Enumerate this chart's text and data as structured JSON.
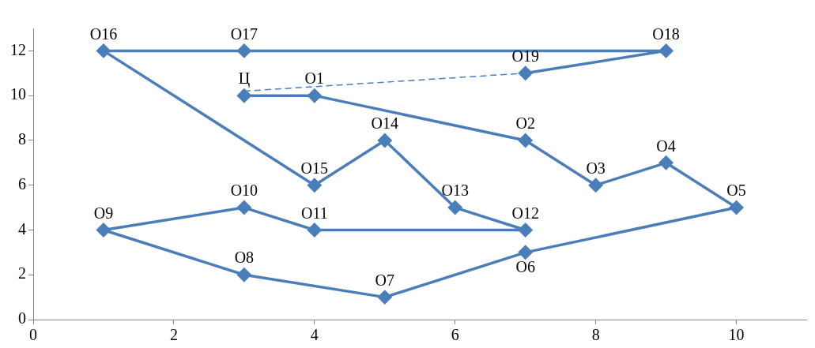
{
  "chart_data": {
    "type": "line",
    "xlim": [
      0,
      11
    ],
    "ylim": [
      0,
      13
    ],
    "xticks": [
      0,
      2,
      4,
      6,
      8,
      10
    ],
    "yticks": [
      0,
      2,
      4,
      6,
      8,
      10,
      12
    ],
    "grid": false,
    "legend": false,
    "marker": "diamond",
    "line_style": "solid",
    "series": [
      {
        "color": "#4a7ebb",
        "x": [
          3,
          4,
          7,
          8,
          9,
          10,
          7,
          5,
          3,
          1,
          3,
          4,
          7,
          6,
          5,
          4,
          1,
          3,
          9,
          7
        ],
        "values": [
          10,
          10,
          8,
          6,
          7,
          5,
          3,
          1,
          2,
          4,
          5,
          4,
          4,
          5,
          8,
          6,
          12,
          12,
          12,
          11
        ]
      },
      {
        "color": "#4a7ebb",
        "marker": "none",
        "line_style": "dashed",
        "x": [
          3,
          7
        ],
        "values": [
          10.2,
          11
        ]
      }
    ],
    "annotations": [
      {
        "text": "Ц",
        "x": 3,
        "y": 10
      },
      {
        "text": "O1",
        "x": 4,
        "y": 10
      },
      {
        "text": "O2",
        "x": 7,
        "y": 8
      },
      {
        "text": "O3",
        "x": 8,
        "y": 6
      },
      {
        "text": "O4",
        "x": 9,
        "y": 7
      },
      {
        "text": "O5",
        "x": 10,
        "y": 5
      },
      {
        "text": "O6",
        "x": 7,
        "y": 3
      },
      {
        "text": "O7",
        "x": 5,
        "y": 1
      },
      {
        "text": "O8",
        "x": 3,
        "y": 2
      },
      {
        "text": "O9",
        "x": 1,
        "y": 4
      },
      {
        "text": "O10",
        "x": 3,
        "y": 5
      },
      {
        "text": "O11",
        "x": 4,
        "y": 4
      },
      {
        "text": "O12",
        "x": 7,
        "y": 4
      },
      {
        "text": "O13",
        "x": 6,
        "y": 5
      },
      {
        "text": "O14",
        "x": 5,
        "y": 8
      },
      {
        "text": "O15",
        "x": 4,
        "y": 6
      },
      {
        "text": "O16",
        "x": 1,
        "y": 12
      },
      {
        "text": "O17",
        "x": 3,
        "y": 12
      },
      {
        "text": "O18",
        "x": 9,
        "y": 12
      },
      {
        "text": "O19",
        "x": 7,
        "y": 11
      }
    ]
  }
}
